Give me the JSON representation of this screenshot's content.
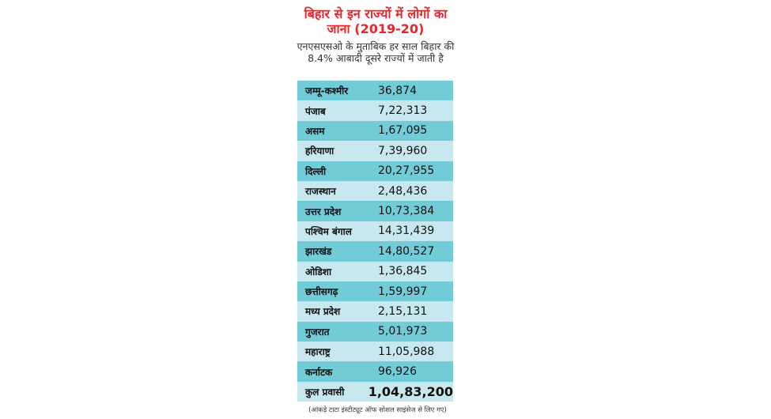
{
  "header": {
    "title_line1": "बिहार से इन राज्यों में लोगों का",
    "title_line2": "जाना (2019-20)",
    "subtitle_line1": "एनएसएसओ के मुताबिक हर साल बिहार की",
    "subtitle_line2": "8.4% आबादी दूसरे राज्यों में जाती है"
  },
  "table": {
    "rows": [
      {
        "state": "जम्मू-कश्मीर",
        "value": "36,874"
      },
      {
        "state": "पंजाब",
        "value": "7,22,313"
      },
      {
        "state": "असम",
        "value": "1,67,095"
      },
      {
        "state": "हरियाणा",
        "value": "7,39,960"
      },
      {
        "state": "दिल्ली",
        "value": "20,27,955"
      },
      {
        "state": "राजस्थान",
        "value": "2,48,436"
      },
      {
        "state": "उत्तर प्रदेश",
        "value": "10,73,384"
      },
      {
        "state": "पश्चिम बंगाल",
        "value": "14,31,439"
      },
      {
        "state": "झारखंड",
        "value": "14,80,527"
      },
      {
        "state": "ओडिशा",
        "value": "1,36,845"
      },
      {
        "state": "छत्तीसगढ़",
        "value": "1,59,997"
      },
      {
        "state": "मध्य प्रदेश",
        "value": "2,15,131"
      },
      {
        "state": "गुजरात",
        "value": "5,01,973"
      },
      {
        "state": "महाराष्ट्र",
        "value": "11,05,988"
      },
      {
        "state": "कर्नाटक",
        "value": "96,926"
      }
    ],
    "total": {
      "state": "कुल प्रवासी",
      "value": "1,04,83,200"
    }
  },
  "footnote": "(आंकड़े टाटा इंस्टीट्यूट ऑफ सोशल साइंसेज से लिए गए)",
  "colors": {
    "title": "#e8262b",
    "row_dark": "#72ccd8",
    "row_light": "#c7e8ef"
  }
}
